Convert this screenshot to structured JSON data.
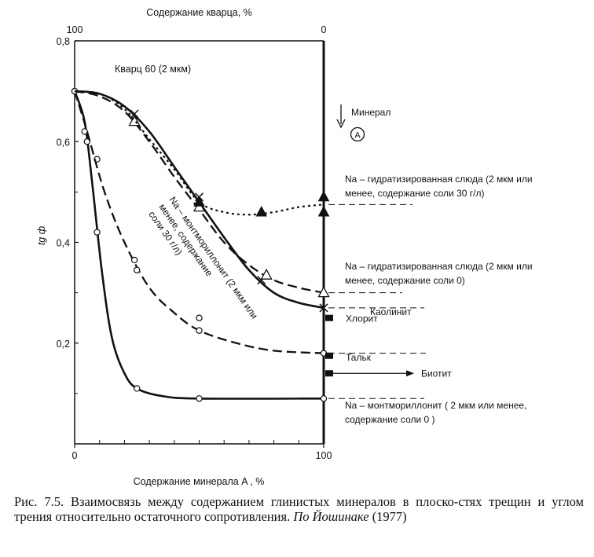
{
  "chart_data": {
    "type": "line",
    "top_axis": {
      "label": "Содержание кварца, %",
      "ticks": [
        "100",
        "0"
      ]
    },
    "xlabel": "Содержание минерала  A , %",
    "ylabel": "tg ф",
    "xlim": [
      0,
      100
    ],
    "ylim": [
      0,
      0.8
    ],
    "x_ticks": [
      0,
      100
    ],
    "y_ticks": [
      "0,2",
      "0,4",
      "0,6",
      "0,8"
    ],
    "grid": false,
    "inner_label": "Кварц 60 (2 мкм)",
    "mineral_arrow": {
      "text": "Минерал",
      "symbol": "A"
    },
    "series": [
      {
        "label": "Na – монтмориллонит  ( 2 мкм или менее, содержание соли 0 )",
        "style": "solid",
        "marker": "circle",
        "points": [
          [
            0,
            0.7
          ],
          [
            4,
            0.62
          ],
          [
            5,
            0.6
          ],
          [
            9,
            0.565
          ],
          [
            9,
            0.42
          ],
          [
            25,
            0.11
          ],
          [
            50,
            0.09
          ],
          [
            100,
            0.09
          ]
        ],
        "curve": [
          [
            0,
            0.7
          ],
          [
            4,
            0.64
          ],
          [
            7,
            0.52
          ],
          [
            11,
            0.34
          ],
          [
            15,
            0.21
          ],
          [
            20,
            0.14
          ],
          [
            25,
            0.11
          ],
          [
            35,
            0.095
          ],
          [
            50,
            0.09
          ],
          [
            100,
            0.09
          ]
        ]
      },
      {
        "label": "Na – монтмориллонит (2 мкм или менее, содержание соли 30 г/л)",
        "style": "dashed",
        "marker": "circle",
        "points": [
          [
            0,
            0.7
          ],
          [
            24,
            0.365
          ],
          [
            25,
            0.345
          ],
          [
            50,
            0.25
          ],
          [
            50,
            0.225
          ],
          [
            100,
            0.18
          ]
        ],
        "curve": [
          [
            0,
            0.7
          ],
          [
            5,
            0.62
          ],
          [
            12,
            0.5
          ],
          [
            20,
            0.4
          ],
          [
            30,
            0.31
          ],
          [
            40,
            0.26
          ],
          [
            50,
            0.225
          ],
          [
            65,
            0.2
          ],
          [
            80,
            0.185
          ],
          [
            100,
            0.18
          ]
        ]
      },
      {
        "label": "Каолинит",
        "style": "solid",
        "marker": "cross",
        "points": [
          [
            24,
            0.655
          ],
          [
            50,
            0.49
          ],
          [
            75,
            0.325
          ],
          [
            100,
            0.27
          ]
        ],
        "curve": [
          [
            0,
            0.7
          ],
          [
            10,
            0.695
          ],
          [
            20,
            0.67
          ],
          [
            30,
            0.62
          ],
          [
            40,
            0.55
          ],
          [
            50,
            0.48
          ],
          [
            60,
            0.41
          ],
          [
            70,
            0.345
          ],
          [
            80,
            0.3
          ],
          [
            90,
            0.28
          ],
          [
            100,
            0.27
          ]
        ]
      },
      {
        "label": "Na – гидратизированная слюда (2 мкм или менее, содержание соли 0)",
        "style": "dashed",
        "marker": "triangle-open",
        "points": [
          [
            24,
            0.64
          ],
          [
            50,
            0.47
          ],
          [
            77,
            0.335
          ],
          [
            100,
            0.3
          ]
        ],
        "curve": [
          [
            0,
            0.7
          ],
          [
            10,
            0.69
          ],
          [
            20,
            0.66
          ],
          [
            30,
            0.6
          ],
          [
            40,
            0.53
          ],
          [
            50,
            0.465
          ],
          [
            60,
            0.4
          ],
          [
            70,
            0.355
          ],
          [
            80,
            0.325
          ],
          [
            90,
            0.31
          ],
          [
            100,
            0.3
          ]
        ]
      },
      {
        "label": "Na – гидратизированная слюда  (2 мкм или менее, содержание соли 30 г/л)",
        "style": "dotted",
        "marker": "triangle-filled",
        "points": [
          [
            50,
            0.48
          ],
          [
            75,
            0.46
          ],
          [
            100,
            0.49
          ],
          [
            100,
            0.46
          ]
        ],
        "curve": [
          [
            0,
            0.7
          ],
          [
            10,
            0.695
          ],
          [
            20,
            0.665
          ],
          [
            30,
            0.605
          ],
          [
            40,
            0.545
          ],
          [
            50,
            0.48
          ],
          [
            60,
            0.46
          ],
          [
            70,
            0.455
          ],
          [
            80,
            0.46
          ],
          [
            90,
            0.47
          ],
          [
            100,
            0.475
          ]
        ]
      }
    ],
    "side_markers": [
      {
        "label": "Хлорит",
        "y": 0.25
      },
      {
        "label": "Тальк",
        "y": 0.175
      },
      {
        "label": "Биотит",
        "y": 0.14,
        "arrow": true
      }
    ]
  },
  "caption": {
    "prefix": "Рис. 7.5. Взаимосвязь между содержанием глинистых минералов в плоско-стях трещин и углом трения относительно остаточного сопротивления. ",
    "source": "По Йошинаке",
    "year": " (1977)"
  }
}
